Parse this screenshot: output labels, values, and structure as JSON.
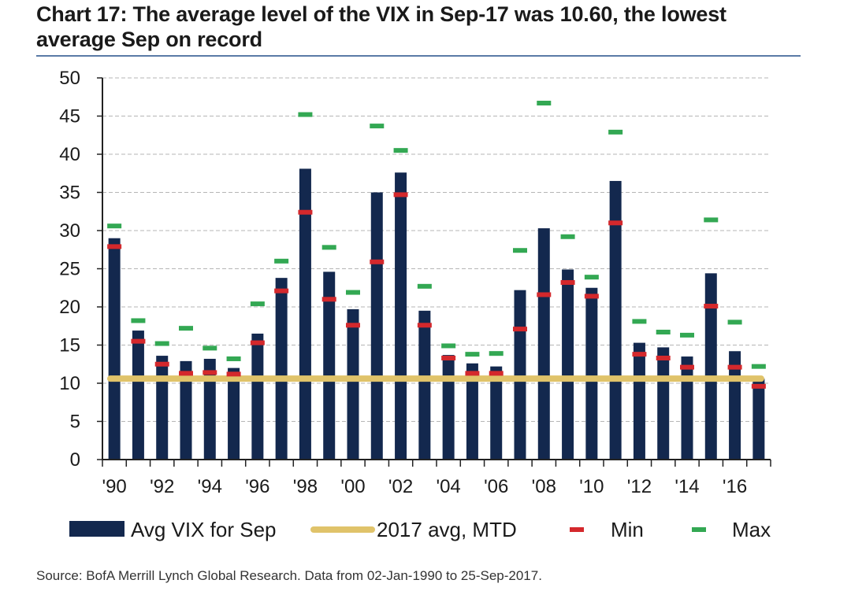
{
  "header": {
    "title": "Chart 17: The average level of the VIX in Sep-17 was 10.60, the lowest average Sep on record"
  },
  "footer": {
    "source": "Source: BofA Merrill Lynch Global Research. Data from 02-Jan-1990 to 25-Sep-2017."
  },
  "colors": {
    "bar": "#13284e",
    "avg_line": "#e0c36a",
    "min": "#d4282c",
    "max": "#33a853",
    "grid": "#b5b5b5",
    "axis": "#222222"
  },
  "chart_data": {
    "type": "bar",
    "title": "Chart 17: The average level of the VIX in Sep-17 was 10.60, the lowest average Sep on record",
    "xlabel": "",
    "ylabel": "",
    "ylim": [
      0,
      50
    ],
    "yticks": [
      "0",
      "5",
      "10",
      "15",
      "20",
      "25",
      "30",
      "35",
      "40",
      "45",
      "50"
    ],
    "categories": [
      "1990",
      "1991",
      "1992",
      "1993",
      "1994",
      "1995",
      "1996",
      "1997",
      "1998",
      "1999",
      "2000",
      "2001",
      "2002",
      "2003",
      "2004",
      "2005",
      "2006",
      "2007",
      "2008",
      "2009",
      "2010",
      "2011",
      "2012",
      "2013",
      "2014",
      "2015",
      "2016",
      "2017"
    ],
    "xtick_labels": [
      "'90",
      "'92",
      "'94",
      "'96",
      "'98",
      "'00",
      "'02",
      "'04",
      "'06",
      "'08",
      "'10",
      "'12",
      "'14",
      "'16"
    ],
    "series": [
      {
        "name": "Avg VIX for Sep",
        "kind": "bar",
        "values": [
          29.0,
          16.9,
          13.6,
          12.9,
          13.2,
          12.0,
          16.5,
          23.8,
          38.1,
          24.6,
          19.7,
          35.0,
          37.6,
          19.5,
          13.7,
          12.6,
          12.2,
          22.2,
          30.3,
          24.9,
          22.5,
          36.5,
          15.3,
          14.7,
          13.5,
          24.4,
          14.2,
          10.6
        ]
      },
      {
        "name": "Min",
        "kind": "dash",
        "values": [
          27.9,
          15.5,
          12.5,
          11.3,
          11.4,
          11.2,
          15.3,
          22.1,
          32.4,
          21.0,
          17.6,
          25.9,
          34.7,
          17.6,
          13.3,
          11.3,
          11.3,
          17.1,
          21.6,
          23.2,
          21.4,
          31.0,
          13.8,
          13.3,
          12.1,
          20.1,
          12.1,
          9.6
        ]
      },
      {
        "name": "Max",
        "kind": "dash",
        "values": [
          30.6,
          18.2,
          15.2,
          17.2,
          14.6,
          13.2,
          20.4,
          26.0,
          45.2,
          27.8,
          21.9,
          43.7,
          40.5,
          22.7,
          14.9,
          13.8,
          13.9,
          27.4,
          46.7,
          29.2,
          23.9,
          42.9,
          18.1,
          16.7,
          16.3,
          31.4,
          18.0,
          12.2
        ]
      }
    ],
    "reference_line": {
      "name": "2017 avg, MTD",
      "value": 10.6
    },
    "legend": {
      "position": "bottom",
      "items": [
        "Avg VIX for Sep",
        "2017 avg, MTD",
        "Min",
        "Max"
      ]
    }
  }
}
